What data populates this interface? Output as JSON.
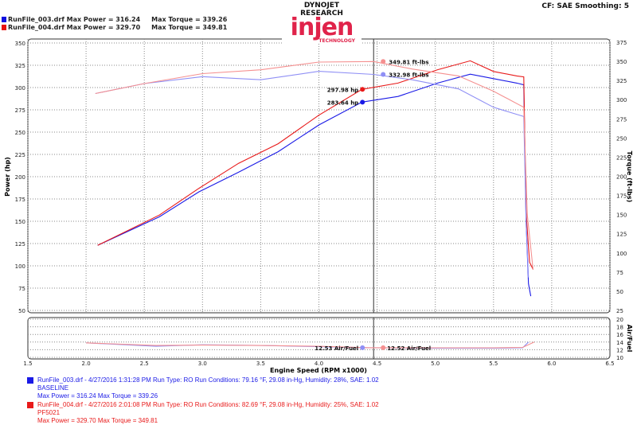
{
  "header": {
    "runs": [
      {
        "text": "RunFile_003.drf Max Power = 316.24",
        "torque": "Max Torque = 339.26",
        "color": "#1010e0"
      },
      {
        "text": "RunFile_004.drf Max Power = 329.70",
        "torque": "Max Torque = 349.81",
        "color": "#e81010"
      }
    ],
    "logo_top": "DYNOJET RESEARCH",
    "logo_main": "injen",
    "logo_sub": "TECHNOLOGY",
    "cf": "CF: SAE  Smoothing: 5"
  },
  "legend": [
    {
      "line1": "RunFile_003.drf - 4/27/2016 1:31:28 PM  Run Type: RO  Run Conditions: 79.16 °F, 29.08 in-Hg,  Humidity:  28%, SAE: 1.02",
      "line2": "BASELINE",
      "line3": "Max Power = 316.24  Max Torque = 339.26",
      "color": "#1a1ae6"
    },
    {
      "line1": "RunFile_004.drf - 4/27/2016 2:01:08 PM  Run Type: RO  Run Conditions: 82.69 °F, 29.08 in-Hg,  Humidity:  25%, SAE: 1.02",
      "line2": "PF5021",
      "line3": "Max Power = 329.70  Max Torque = 349.81",
      "color": "#e81a1a"
    }
  ],
  "chart_data": [
    {
      "type": "line",
      "xlabel": "Engine Speed (RPM x1000)",
      "ylabel": "Power (hp)",
      "y2label": "Torque (ft-lbs)",
      "xlim": [
        1.5,
        6.5
      ],
      "ylim": [
        50,
        350
      ],
      "y2lim": [
        25,
        375
      ],
      "grid": true,
      "cursor_x": 4.47,
      "xticks": [
        "1.5",
        "2.0",
        "2.5",
        "3.0",
        "3.5",
        "4.0",
        "4.5",
        "5.0",
        "5.5",
        "6.0",
        "6.5"
      ],
      "yticks": [
        "50",
        "75",
        "100",
        "125",
        "150",
        "175",
        "200",
        "225",
        "250",
        "275",
        "300",
        "325",
        "350"
      ],
      "y2ticks": [
        "25",
        "50",
        "75",
        "100",
        "125",
        "150",
        "175",
        "200",
        "225",
        "250",
        "275",
        "300",
        "325",
        "350",
        "375"
      ],
      "series": [
        {
          "name": "RunFile_003 Power",
          "axis": "left",
          "color": "#1a1ae6",
          "x": [
            2.1,
            2.63,
            2.97,
            3.31,
            3.65,
            4.0,
            4.37,
            4.68,
            5.02,
            5.3,
            5.5,
            5.7,
            5.76,
            5.78,
            5.8,
            5.82
          ],
          "y": [
            123,
            155,
            183,
            205,
            228,
            258,
            283.64,
            290,
            305,
            315,
            310,
            305,
            303,
            150,
            80,
            66
          ]
        },
        {
          "name": "RunFile_004 Power",
          "axis": "left",
          "color": "#e81a1a",
          "x": [
            2.1,
            2.63,
            2.97,
            3.31,
            3.65,
            4.0,
            4.37,
            4.68,
            5.02,
            5.3,
            5.5,
            5.7,
            5.76,
            5.78,
            5.81,
            5.84
          ],
          "y": [
            123,
            157,
            187,
            215,
            237,
            269,
            297.98,
            305,
            320,
            330,
            318,
            313,
            312,
            160,
            104,
            96
          ]
        },
        {
          "name": "RunFile_003 Torque",
          "axis": "right",
          "color": "#8f8ff5",
          "x": [
            2.08,
            2.5,
            3.0,
            3.5,
            4.0,
            4.47,
            4.8,
            5.2,
            5.5,
            5.76,
            5.78,
            5.8
          ],
          "y": [
            308,
            321,
            330,
            326,
            337,
            332.98,
            326,
            314,
            290,
            278,
            140,
            68
          ]
        },
        {
          "name": "RunFile_004 Torque",
          "axis": "right",
          "color": "#f59090",
          "x": [
            2.08,
            2.5,
            3.0,
            3.5,
            4.0,
            4.47,
            4.8,
            5.2,
            5.5,
            5.76,
            5.79,
            5.84
          ],
          "y": [
            308,
            321,
            334,
            339,
            349,
            349.81,
            340,
            331,
            311,
            290,
            150,
            78
          ]
        }
      ],
      "labels": [
        {
          "text": "297.98 hp",
          "series": 1
        },
        {
          "text": "283.64 hp",
          "series": 0
        },
        {
          "text": "349.81 ft-lbs",
          "series": 3
        },
        {
          "text": "332.98 ft-lbs",
          "series": 2
        }
      ]
    },
    {
      "type": "line",
      "ylabel": "Air/Fuel",
      "xlim": [
        1.5,
        6.5
      ],
      "ylim": [
        10,
        20
      ],
      "yticks": [
        "10",
        "12",
        "14",
        "16",
        "18",
        "20"
      ],
      "series": [
        {
          "name": "RunFile_003 AFR",
          "color": "#8f8ff5",
          "x": [
            2.0,
            2.6,
            3.0,
            3.5,
            4.0,
            4.43,
            5.0,
            5.5,
            5.75,
            5.8
          ],
          "y": [
            13.8,
            12.9,
            13.3,
            13.1,
            12.8,
            12.53,
            12.4,
            12.4,
            12.5,
            14.0
          ]
        },
        {
          "name": "RunFile_004 AFR",
          "color": "#f59090",
          "x": [
            2.0,
            2.6,
            3.0,
            3.5,
            4.0,
            4.43,
            5.0,
            5.5,
            5.75,
            5.85
          ],
          "y": [
            13.8,
            13.1,
            13.2,
            13.1,
            12.9,
            12.52,
            12.5,
            12.5,
            12.6,
            14.0
          ]
        }
      ],
      "labels": [
        {
          "text": "12.53 Air/Fuel",
          "series": 0
        },
        {
          "text": "12.52 Air/Fuel",
          "series": 1
        }
      ]
    }
  ]
}
